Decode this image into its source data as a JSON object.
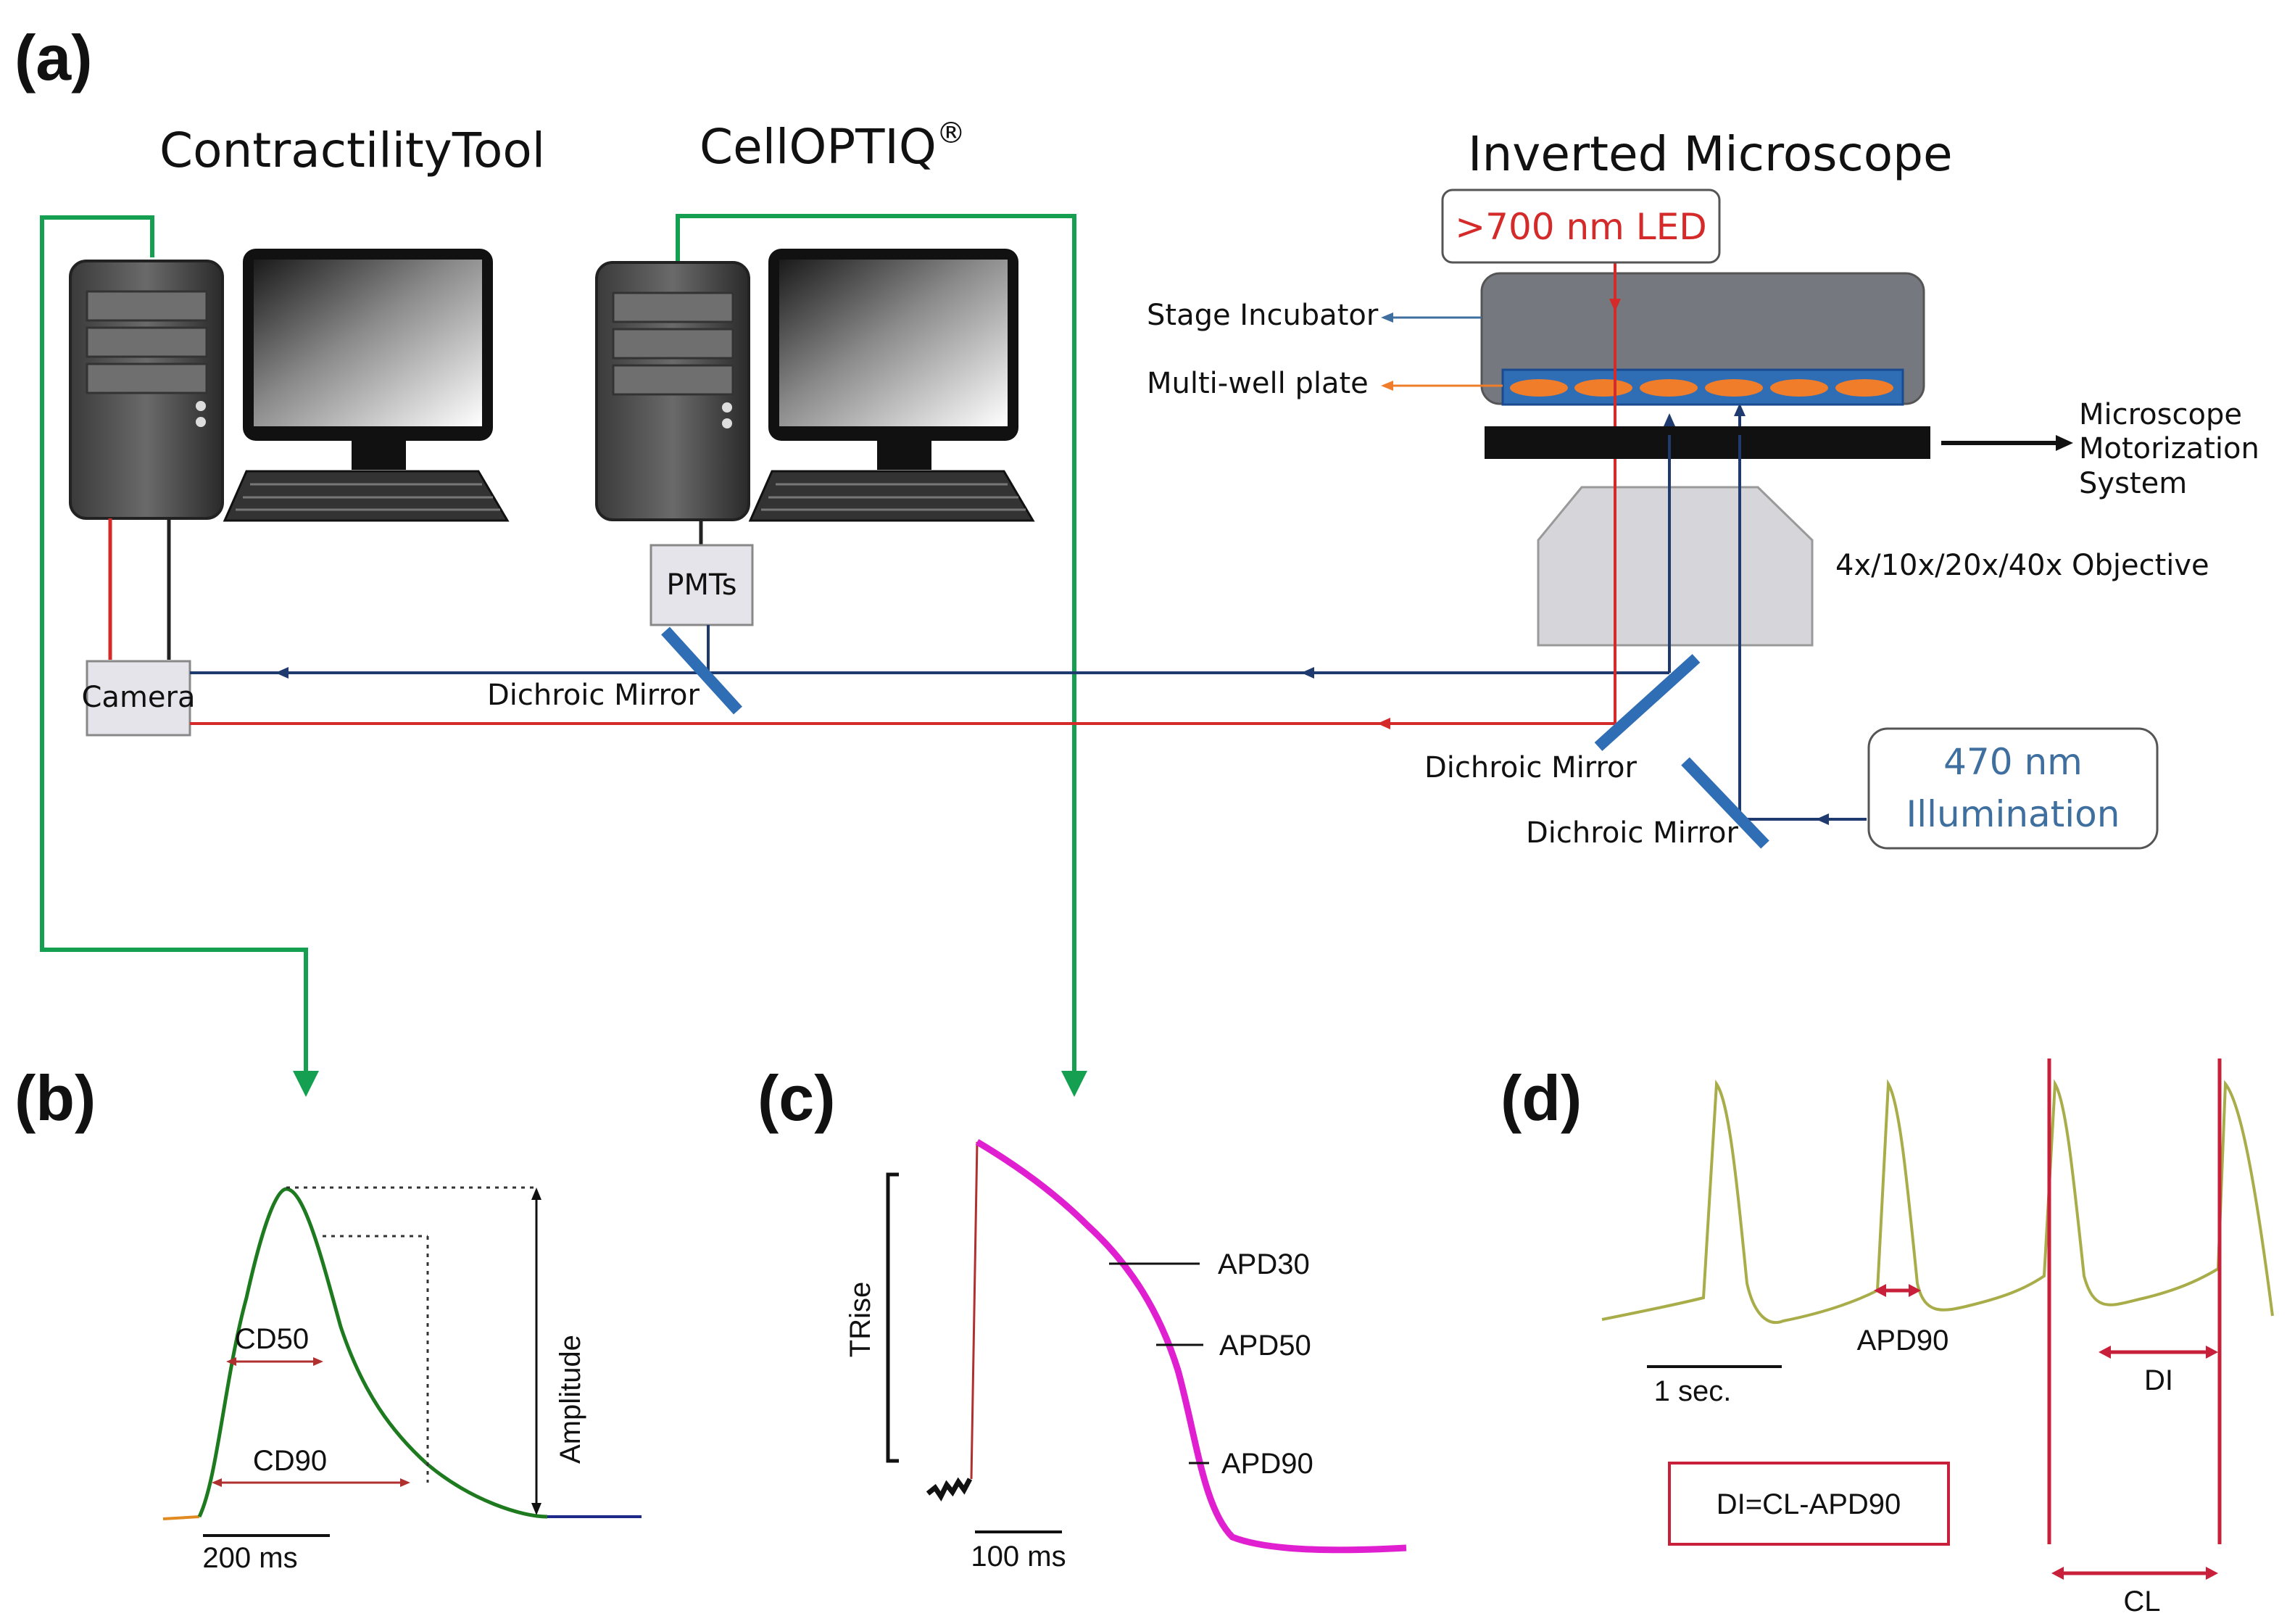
{
  "panels": {
    "a": "(a)",
    "b": "(b)",
    "c": "(c)",
    "d": "(d)"
  },
  "panel_a": {
    "contractility_title": "ContractilityTool",
    "cellopticq_title": "CellOPTIQ",
    "registered_mark": "®",
    "microscope_title": "Inverted Microscope",
    "led_label": ">700 nm LED",
    "stage_incubator": "Stage Incubator",
    "multiwell_plate": "Multi-well plate",
    "motorization": [
      "Microscope",
      "Motorization",
      "System"
    ],
    "objective": "4x/10x/20x/40x Objective",
    "pmts": "PMTs",
    "camera": "Camera",
    "dichroic_left": "Dichroic Mirror",
    "dichroic_mid": "Dichroic Mirror",
    "dichroic_low": "Dichroic Mirror",
    "illumination": [
      "470 nm",
      "Illumination"
    ]
  },
  "panel_b": {
    "cd50": "CD50",
    "cd90": "CD90",
    "amplitude": "Amplitude",
    "scale": "200 ms"
  },
  "panel_c": {
    "trise": "TRise",
    "apd30": "APD30",
    "apd50": "APD50",
    "apd90": "APD90",
    "scale": "100 ms"
  },
  "panel_d": {
    "scale": "1 sec.",
    "apd90": "APD90",
    "di": "DI",
    "cl": "CL",
    "formula": "DI=CL-APD90"
  },
  "colors": {
    "green_link": "#14a050",
    "red_line": "#d42a2a",
    "blue_line": "#1e3a6e",
    "mirror": "#2f6db5",
    "contraction": "#1e7a1e",
    "ap_trace": "#e020d0",
    "trace_d": "#a8ad4a",
    "marker_d": "#c8203a"
  }
}
